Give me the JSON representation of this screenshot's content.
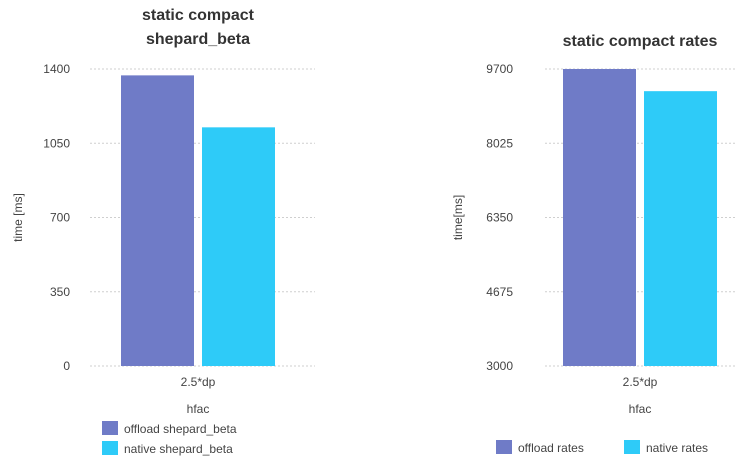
{
  "chart_data": [
    {
      "type": "bar",
      "title_lines": [
        "static compact",
        "shepard_beta"
      ],
      "xlabel": "hfac",
      "ylabel": "time [ms]",
      "categories": [
        "2.5*dp"
      ],
      "ylim": [
        0,
        1400
      ],
      "yticks": [
        0,
        350,
        700,
        1050,
        1400
      ],
      "grid": true,
      "legend_position": "bottom-left",
      "series": [
        {
          "name": "offload shepard_beta",
          "values": [
            1370
          ],
          "color": "#6f7bc7"
        },
        {
          "name": "native shepard_beta",
          "values": [
            1125
          ],
          "color": "#2ecbf8"
        }
      ]
    },
    {
      "type": "bar",
      "title_lines": [
        "static compact rates"
      ],
      "xlabel": "hfac",
      "ylabel": "time[ms]",
      "categories": [
        "2.5*dp"
      ],
      "ylim": [
        3000,
        9700
      ],
      "yticks": [
        3000,
        4675,
        6350,
        8025,
        9700
      ],
      "grid": true,
      "legend_position": "bottom",
      "series": [
        {
          "name": "offload rates",
          "values": [
            9700
          ],
          "color": "#6f7bc7"
        },
        {
          "name": "native rates",
          "values": [
            9200
          ],
          "color": "#2ecbf8"
        }
      ]
    }
  ]
}
